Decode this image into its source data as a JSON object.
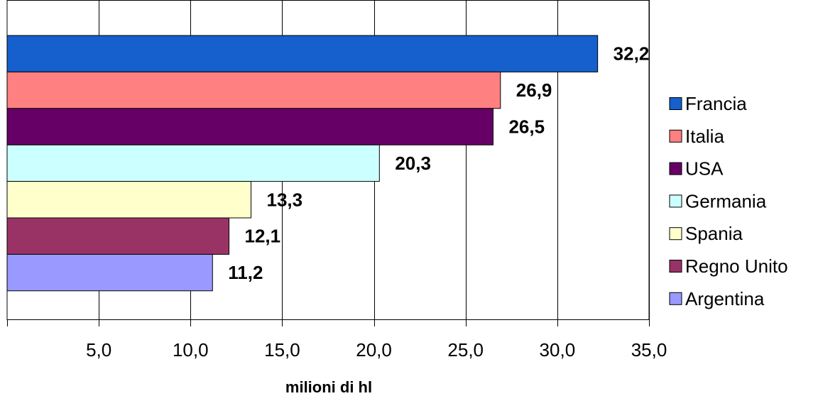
{
  "chart_data": {
    "type": "bar",
    "orientation": "horizontal",
    "title": "",
    "xlabel": "milioni di hl",
    "ylabel": "",
    "xlim": [
      0,
      35
    ],
    "xticks": [
      5,
      10,
      15,
      20,
      25,
      30,
      35
    ],
    "xtick_labels": [
      "5,0",
      "10,0",
      "15,0",
      "20,0",
      "25,0",
      "30,0",
      "35,0"
    ],
    "grid": true,
    "legend_position": "right",
    "categories": [
      "Francia",
      "Italia",
      "USA",
      "Germania",
      "Spania",
      "Regno Unito",
      "Argentina"
    ],
    "values": [
      32.2,
      26.9,
      26.5,
      20.3,
      13.3,
      12.1,
      11.2
    ],
    "value_labels": [
      "32,2",
      "26,9",
      "26,5",
      "20,3",
      "13,3",
      "12,1",
      "11,2"
    ],
    "colors": [
      "#1560cc",
      "#ff8080",
      "#660066",
      "#ccffff",
      "#ffffcc",
      "#993366",
      "#9999ff"
    ]
  }
}
